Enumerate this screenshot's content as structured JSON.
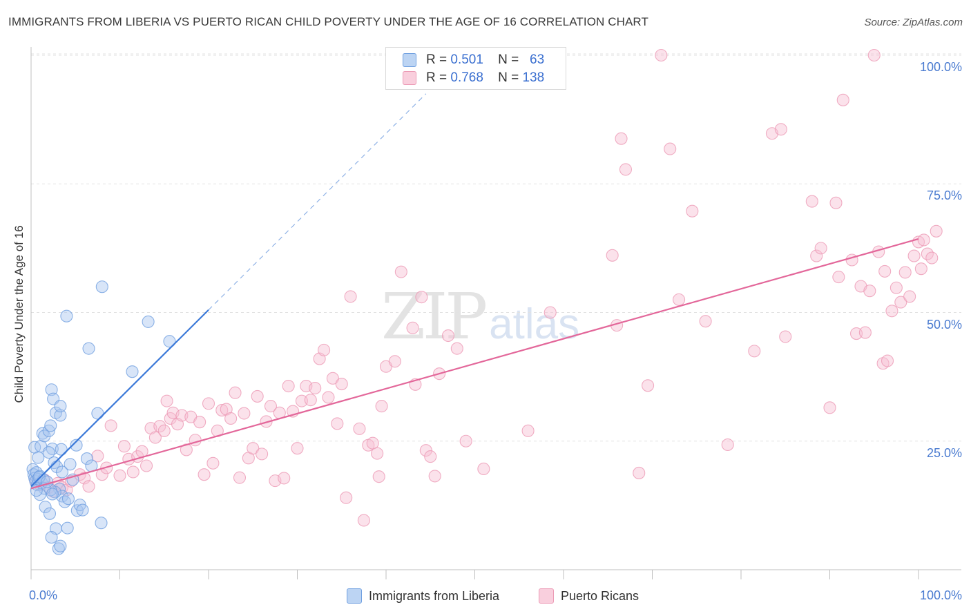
{
  "chart_data": {
    "type": "scatter",
    "title": "IMMIGRANTS FROM LIBERIA VS PUERTO RICAN CHILD POVERTY UNDER THE AGE OF 16 CORRELATION CHART",
    "source": "Source: ZipAtlas.com",
    "xlabel": "",
    "ylabel": "Child Poverty Under the Age of 16",
    "xlim": [
      0,
      100
    ],
    "ylim": [
      0,
      100
    ],
    "x_tick_labels": [
      "0.0%",
      "100.0%"
    ],
    "y_tick_labels": [
      "25.0%",
      "50.0%",
      "75.0%",
      "100.0%"
    ],
    "y_tick_values": [
      25,
      50,
      75,
      100
    ],
    "watermark": {
      "zip": "ZIP",
      "atlas": "atlas"
    },
    "legend": {
      "rows": [
        {
          "r_label": "R =",
          "r_value": "0.501",
          "n_label": "N =",
          "n_value": "63"
        },
        {
          "r_label": "R =",
          "r_value": "0.768",
          "n_label": "N =",
          "n_value": "138"
        }
      ]
    },
    "series": [
      {
        "name": "Immigrants from Liberia",
        "color": "#6f9fe0",
        "fill": "#a9c6ef",
        "line_color": "#3a78d8",
        "trend": {
          "x0": 0,
          "y0": 16.2,
          "x1": 20,
          "y1": 50.5,
          "dashed_to_x": 44.5
        },
        "points": [
          [
            0.2,
            19.5
          ],
          [
            0.3,
            18.5
          ],
          [
            0.4,
            17.8
          ],
          [
            0.5,
            17.2
          ],
          [
            0.6,
            18.9
          ],
          [
            0.7,
            16.5
          ],
          [
            0.8,
            17.6
          ],
          [
            1.0,
            18.2
          ],
          [
            1.2,
            16.9
          ],
          [
            1.4,
            17.5
          ],
          [
            0.4,
            23.8
          ],
          [
            0.8,
            21.8
          ],
          [
            1.1,
            24.0
          ],
          [
            1.3,
            26.5
          ],
          [
            1.5,
            26.0
          ],
          [
            2.0,
            27.0
          ],
          [
            2.2,
            28.0
          ],
          [
            2.4,
            23.5
          ],
          [
            2.0,
            22.8
          ],
          [
            2.6,
            20.8
          ],
          [
            2.9,
            20.0
          ],
          [
            3.4,
            23.4
          ],
          [
            3.5,
            19.0
          ],
          [
            4.4,
            20.5
          ],
          [
            5.1,
            24.2
          ],
          [
            6.3,
            21.6
          ],
          [
            6.8,
            20.2
          ],
          [
            4.7,
            17.5
          ],
          [
            3.2,
            15.7
          ],
          [
            3.5,
            14.3
          ],
          [
            3.8,
            13.2
          ],
          [
            5.2,
            11.5
          ],
          [
            5.5,
            12.6
          ],
          [
            4.2,
            13.8
          ],
          [
            2.7,
            15.1
          ],
          [
            2.2,
            15.5
          ],
          [
            1.5,
            15.8
          ],
          [
            1.0,
            14.6
          ],
          [
            1.6,
            12.2
          ],
          [
            2.1,
            10.9
          ],
          [
            2.8,
            8.0
          ],
          [
            2.3,
            6.3
          ],
          [
            3.1,
            4.1
          ],
          [
            3.3,
            4.6
          ],
          [
            4.1,
            8.1
          ],
          [
            5.8,
            11.6
          ],
          [
            7.9,
            9.1
          ],
          [
            2.3,
            35.0
          ],
          [
            2.5,
            33.2
          ],
          [
            2.8,
            30.5
          ],
          [
            3.3,
            30.0
          ],
          [
            3.3,
            31.8
          ],
          [
            7.5,
            30.4
          ],
          [
            8.0,
            55.0
          ],
          [
            4.0,
            49.3
          ],
          [
            6.5,
            43.0
          ],
          [
            11.4,
            38.5
          ],
          [
            13.2,
            48.2
          ],
          [
            15.6,
            44.4
          ],
          [
            0.9,
            18.0
          ],
          [
            1.8,
            17.1
          ],
          [
            0.6,
            15.4
          ],
          [
            2.4,
            14.7
          ]
        ]
      },
      {
        "name": "Puerto Ricans",
        "color": "#ec9ab5",
        "fill": "#f7bfd2",
        "line_color": "#e3679a",
        "trend": {
          "x0": 0,
          "y0": 15.8,
          "x1": 100,
          "y1": 64.3
        },
        "points": [
          [
            0.5,
            17.2
          ],
          [
            1.0,
            16.5
          ],
          [
            1.5,
            17.5
          ],
          [
            2.0,
            16.0
          ],
          [
            2.5,
            15.2
          ],
          [
            3.0,
            16.8
          ],
          [
            3.5,
            16.0
          ],
          [
            4.0,
            15.5
          ],
          [
            4.5,
            17.2
          ],
          [
            5.5,
            18.5
          ],
          [
            6.0,
            17.8
          ],
          [
            6.5,
            16.2
          ],
          [
            7.5,
            22.1
          ],
          [
            8.0,
            18.5
          ],
          [
            8.5,
            19.8
          ],
          [
            9.0,
            28.0
          ],
          [
            10.0,
            18.3
          ],
          [
            10.5,
            24.0
          ],
          [
            11.0,
            21.5
          ],
          [
            11.5,
            19.0
          ],
          [
            12.0,
            22.0
          ],
          [
            12.5,
            23.0
          ],
          [
            13.0,
            20.2
          ],
          [
            13.5,
            27.5
          ],
          [
            14.0,
            25.7
          ],
          [
            14.5,
            27.9
          ],
          [
            15.0,
            27.0
          ],
          [
            15.3,
            32.8
          ],
          [
            15.7,
            29.4
          ],
          [
            16.0,
            30.5
          ],
          [
            16.5,
            28.3
          ],
          [
            17.0,
            30.0
          ],
          [
            17.5,
            23.3
          ],
          [
            18.0,
            29.7
          ],
          [
            18.5,
            25.2
          ],
          [
            19.0,
            28.7
          ],
          [
            19.5,
            18.5
          ],
          [
            20.0,
            32.3
          ],
          [
            20.5,
            20.7
          ],
          [
            21.0,
            27.0
          ],
          [
            21.5,
            31.0
          ],
          [
            22.0,
            31.2
          ],
          [
            22.5,
            29.4
          ],
          [
            23.0,
            34.4
          ],
          [
            23.5,
            17.9
          ],
          [
            24.0,
            30.4
          ],
          [
            24.5,
            21.7
          ],
          [
            25.0,
            23.6
          ],
          [
            25.5,
            33.7
          ],
          [
            26.0,
            22.5
          ],
          [
            26.5,
            28.8
          ],
          [
            27.0,
            31.8
          ],
          [
            27.5,
            17.3
          ],
          [
            28.0,
            30.5
          ],
          [
            28.5,
            17.8
          ],
          [
            29.0,
            35.7
          ],
          [
            29.5,
            30.8
          ],
          [
            30.0,
            23.6
          ],
          [
            30.5,
            32.8
          ],
          [
            31.0,
            35.7
          ],
          [
            31.5,
            33.0
          ],
          [
            32.0,
            35.3
          ],
          [
            32.5,
            41.0
          ],
          [
            33.0,
            42.7
          ],
          [
            33.5,
            33.5
          ],
          [
            34.0,
            37.2
          ],
          [
            34.5,
            28.4
          ],
          [
            35.0,
            36.1
          ],
          [
            35.5,
            14.0
          ],
          [
            36.0,
            53.1
          ],
          [
            37.0,
            27.4
          ],
          [
            37.5,
            9.6
          ],
          [
            38.0,
            24.2
          ],
          [
            38.5,
            24.6
          ],
          [
            39.0,
            22.6
          ],
          [
            39.2,
            18.1
          ],
          [
            39.5,
            31.8
          ],
          [
            40.0,
            39.5
          ],
          [
            41.0,
            40.5
          ],
          [
            41.7,
            57.9
          ],
          [
            43.0,
            47.0
          ],
          [
            43.3,
            36.0
          ],
          [
            44.0,
            53.0
          ],
          [
            44.5,
            23.2
          ],
          [
            45.0,
            22.0
          ],
          [
            45.5,
            18.2
          ],
          [
            46.0,
            38.1
          ],
          [
            47.0,
            45.5
          ],
          [
            48.0,
            43.0
          ],
          [
            49.0,
            25.0
          ],
          [
            51.0,
            19.6
          ],
          [
            56.0,
            27.0
          ],
          [
            58.5,
            50.0
          ],
          [
            65.5,
            61.1
          ],
          [
            66.0,
            47.5
          ],
          [
            66.5,
            83.8
          ],
          [
            67.0,
            77.8
          ],
          [
            68.5,
            18.8
          ],
          [
            69.5,
            35.8
          ],
          [
            71.0,
            100.0
          ],
          [
            72.0,
            81.8
          ],
          [
            73.0,
            52.5
          ],
          [
            74.5,
            69.7
          ],
          [
            76.0,
            48.3
          ],
          [
            78.5,
            24.3
          ],
          [
            81.5,
            42.5
          ],
          [
            83.5,
            84.8
          ],
          [
            84.5,
            85.6
          ],
          [
            85.0,
            45.3
          ],
          [
            88.0,
            71.6
          ],
          [
            88.5,
            61.0
          ],
          [
            89.0,
            62.5
          ],
          [
            90.0,
            31.5
          ],
          [
            90.7,
            71.3
          ],
          [
            91.0,
            56.9
          ],
          [
            91.5,
            91.3
          ],
          [
            92.5,
            60.2
          ],
          [
            93.0,
            45.9
          ],
          [
            93.5,
            55.1
          ],
          [
            94.0,
            46.1
          ],
          [
            94.5,
            54.2
          ],
          [
            95.0,
            100.0
          ],
          [
            95.5,
            61.8
          ],
          [
            96.0,
            40.1
          ],
          [
            96.5,
            40.6
          ],
          [
            97.0,
            50.3
          ],
          [
            97.5,
            54.8
          ],
          [
            98.0,
            52.0
          ],
          [
            98.5,
            57.8
          ],
          [
            99.0,
            53.1
          ],
          [
            99.5,
            61.0
          ],
          [
            100.0,
            63.7
          ],
          [
            100.3,
            58.5
          ],
          [
            100.6,
            64.1
          ],
          [
            101.0,
            61.4
          ],
          [
            101.5,
            60.6
          ],
          [
            102.0,
            65.8
          ],
          [
            96.2,
            58.0
          ]
        ]
      }
    ]
  }
}
